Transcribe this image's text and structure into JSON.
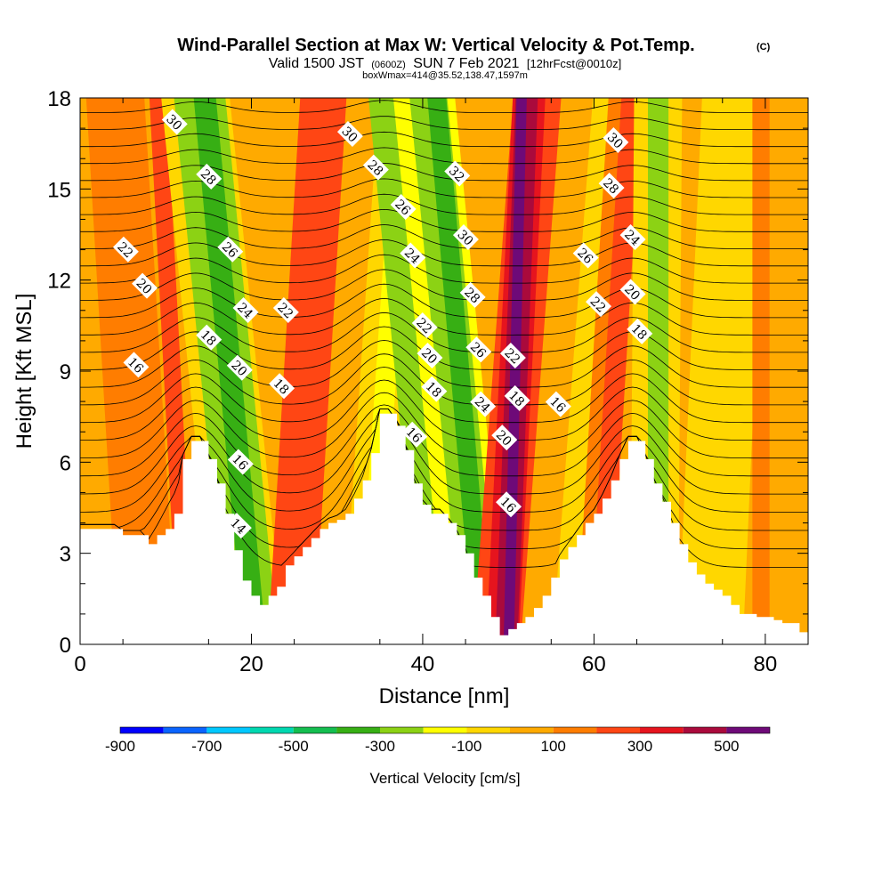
{
  "header": {
    "title": "Wind-Parallel Section at Max W: Vertical Velocity & Pot.Temp.",
    "title_unit": "(C)",
    "subtitle_a": "Valid 1500 JST",
    "subtitle_b": "(0600Z)",
    "subtitle_c": "SUN 7 Feb 2021",
    "subtitle_d": "[12hrFcst@0010z]",
    "info": "boxWmax=414@35.52,138.47,1597m"
  },
  "chart_data": {
    "type": "heatmap",
    "title": "Wind-Parallel Section at Max W: Vertical Velocity & Pot.Temp.",
    "xlabel": "Distance [nm]",
    "ylabel": "Height [Kft MSL]",
    "xlim": [
      0,
      85
    ],
    "ylim": [
      0,
      18
    ],
    "x_ticks": [
      0,
      20,
      40,
      60,
      80
    ],
    "y_ticks": [
      0,
      3,
      6,
      9,
      12,
      15,
      18
    ],
    "x_tick_labels": [
      "0",
      "20",
      "40",
      "60",
      "80"
    ],
    "y_tick_labels": [
      "0",
      "3",
      "6",
      "9",
      "12",
      "15",
      "18"
    ],
    "colorbar": {
      "label": "Vertical Velocity [cm/s]",
      "levels": [
        -900,
        -800,
        -700,
        -600,
        -500,
        -400,
        -300,
        -200,
        -100,
        0,
        100,
        200,
        300,
        400,
        500,
        600
      ],
      "tick_labels": [
        "-900",
        "-700",
        "-500",
        "-300",
        "-100",
        "100",
        "300",
        "500"
      ],
      "tick_values": [
        -900,
        -700,
        -500,
        -300,
        -100,
        100,
        300,
        500
      ],
      "colors": [
        "#0000ff",
        "#0a64ff",
        "#00c8ff",
        "#00d8b0",
        "#14be50",
        "#37af14",
        "#8cd214",
        "#ffff00",
        "#ffd700",
        "#ffaa00",
        "#ff7d00",
        "#ff4614",
        "#e6141e",
        "#aa0a3c",
        "#6e0a78"
      ]
    },
    "terrain": [
      [
        0,
        3.8
      ],
      [
        4,
        3.8
      ],
      [
        5,
        3.6
      ],
      [
        7,
        3.6
      ],
      [
        8,
        3.3
      ],
      [
        9,
        3.6
      ],
      [
        10,
        3.8
      ],
      [
        11,
        4.3
      ],
      [
        12,
        6.1
      ],
      [
        13,
        6.7
      ],
      [
        14,
        6.7
      ],
      [
        15,
        6.1
      ],
      [
        16,
        5.3
      ],
      [
        17,
        4.3
      ],
      [
        18,
        3.1
      ],
      [
        19,
        2.1
      ],
      [
        20,
        1.6
      ],
      [
        21,
        1.3
      ],
      [
        22,
        1.6
      ],
      [
        23,
        1.9
      ],
      [
        24,
        2.6
      ],
      [
        25,
        2.9
      ],
      [
        26,
        3.2
      ],
      [
        27,
        3.5
      ],
      [
        28,
        3.8
      ],
      [
        29,
        4.0
      ],
      [
        30,
        4.1
      ],
      [
        31,
        4.3
      ],
      [
        32,
        4.8
      ],
      [
        33,
        5.4
      ],
      [
        34,
        6.3
      ],
      [
        35,
        7.6
      ],
      [
        36,
        7.6
      ],
      [
        37,
        7.2
      ],
      [
        38,
        6.4
      ],
      [
        39,
        5.3
      ],
      [
        40,
        4.6
      ],
      [
        41,
        4.3
      ],
      [
        42,
        4.3
      ],
      [
        43,
        4.0
      ],
      [
        44,
        3.6
      ],
      [
        45,
        3.0
      ],
      [
        46,
        2.2
      ],
      [
        47,
        1.6
      ],
      [
        48,
        0.9
      ],
      [
        49,
        0.3
      ],
      [
        50,
        0.5
      ],
      [
        51,
        0.7
      ],
      [
        52,
        0.9
      ],
      [
        53,
        1.2
      ],
      [
        54,
        1.6
      ],
      [
        55,
        2.2
      ],
      [
        56,
        2.8
      ],
      [
        57,
        3.2
      ],
      [
        58,
        3.6
      ],
      [
        59,
        4.0
      ],
      [
        60,
        4.3
      ],
      [
        61,
        4.8
      ],
      [
        62,
        5.4
      ],
      [
        63,
        6.1
      ],
      [
        64,
        6.7
      ],
      [
        65,
        6.7
      ],
      [
        66,
        6.1
      ],
      [
        67,
        5.3
      ],
      [
        68,
        4.7
      ],
      [
        69,
        4.0
      ],
      [
        70,
        3.3
      ],
      [
        71,
        2.7
      ],
      [
        72,
        2.3
      ],
      [
        73,
        2.0
      ],
      [
        74,
        1.8
      ],
      [
        75,
        1.6
      ],
      [
        76,
        1.3
      ],
      [
        77,
        1.0
      ],
      [
        78,
        1.0
      ],
      [
        79,
        0.9
      ],
      [
        80,
        0.9
      ],
      [
        81,
        0.8
      ],
      [
        82,
        0.7
      ],
      [
        83,
        0.7
      ],
      [
        84,
        0.4
      ],
      [
        85,
        0.4
      ]
    ],
    "isentrope_labels": [
      {
        "text": "30",
        "x": 11,
        "y": 17.2
      },
      {
        "text": "28",
        "x": 15,
        "y": 15.4
      },
      {
        "text": "26",
        "x": 17.5,
        "y": 13.0
      },
      {
        "text": "22",
        "x": 5.3,
        "y": 13.0
      },
      {
        "text": "20",
        "x": 7.5,
        "y": 11.8
      },
      {
        "text": "24",
        "x": 19.3,
        "y": 11.0
      },
      {
        "text": "22",
        "x": 24,
        "y": 11.0
      },
      {
        "text": "18",
        "x": 15,
        "y": 10.1
      },
      {
        "text": "16",
        "x": 6.5,
        "y": 9.2
      },
      {
        "text": "20",
        "x": 18.6,
        "y": 9.1
      },
      {
        "text": "18",
        "x": 23.5,
        "y": 8.5
      },
      {
        "text": "16",
        "x": 18.7,
        "y": 6.0
      },
      {
        "text": "14",
        "x": 18.5,
        "y": 3.9
      },
      {
        "text": "30",
        "x": 31.5,
        "y": 16.8
      },
      {
        "text": "28",
        "x": 34.5,
        "y": 15.7
      },
      {
        "text": "32",
        "x": 44,
        "y": 15.5
      },
      {
        "text": "26",
        "x": 37.7,
        "y": 14.4
      },
      {
        "text": "30",
        "x": 45,
        "y": 13.4
      },
      {
        "text": "24",
        "x": 38.8,
        "y": 12.8
      },
      {
        "text": "28",
        "x": 45.8,
        "y": 11.5
      },
      {
        "text": "22",
        "x": 40.2,
        "y": 10.5
      },
      {
        "text": "26",
        "x": 46.5,
        "y": 9.7
      },
      {
        "text": "20",
        "x": 40.8,
        "y": 9.5
      },
      {
        "text": "18",
        "x": 41.3,
        "y": 8.4
      },
      {
        "text": "24",
        "x": 47,
        "y": 7.9
      },
      {
        "text": "16",
        "x": 39,
        "y": 6.9
      },
      {
        "text": "22",
        "x": 50.5,
        "y": 9.5
      },
      {
        "text": "18",
        "x": 51,
        "y": 8.1
      },
      {
        "text": "20",
        "x": 49.5,
        "y": 6.8
      },
      {
        "text": "16",
        "x": 50,
        "y": 4.6
      },
      {
        "text": "30",
        "x": 62.5,
        "y": 16.6
      },
      {
        "text": "28",
        "x": 62,
        "y": 15.1
      },
      {
        "text": "24",
        "x": 64.5,
        "y": 13.4
      },
      {
        "text": "26",
        "x": 59,
        "y": 12.8
      },
      {
        "text": "20",
        "x": 64.5,
        "y": 11.6
      },
      {
        "text": "22",
        "x": 60.5,
        "y": 11.2
      },
      {
        "text": "18",
        "x": 65.3,
        "y": 10.3
      },
      {
        "text": "16",
        "x": 55.8,
        "y": 7.9
      }
    ]
  }
}
